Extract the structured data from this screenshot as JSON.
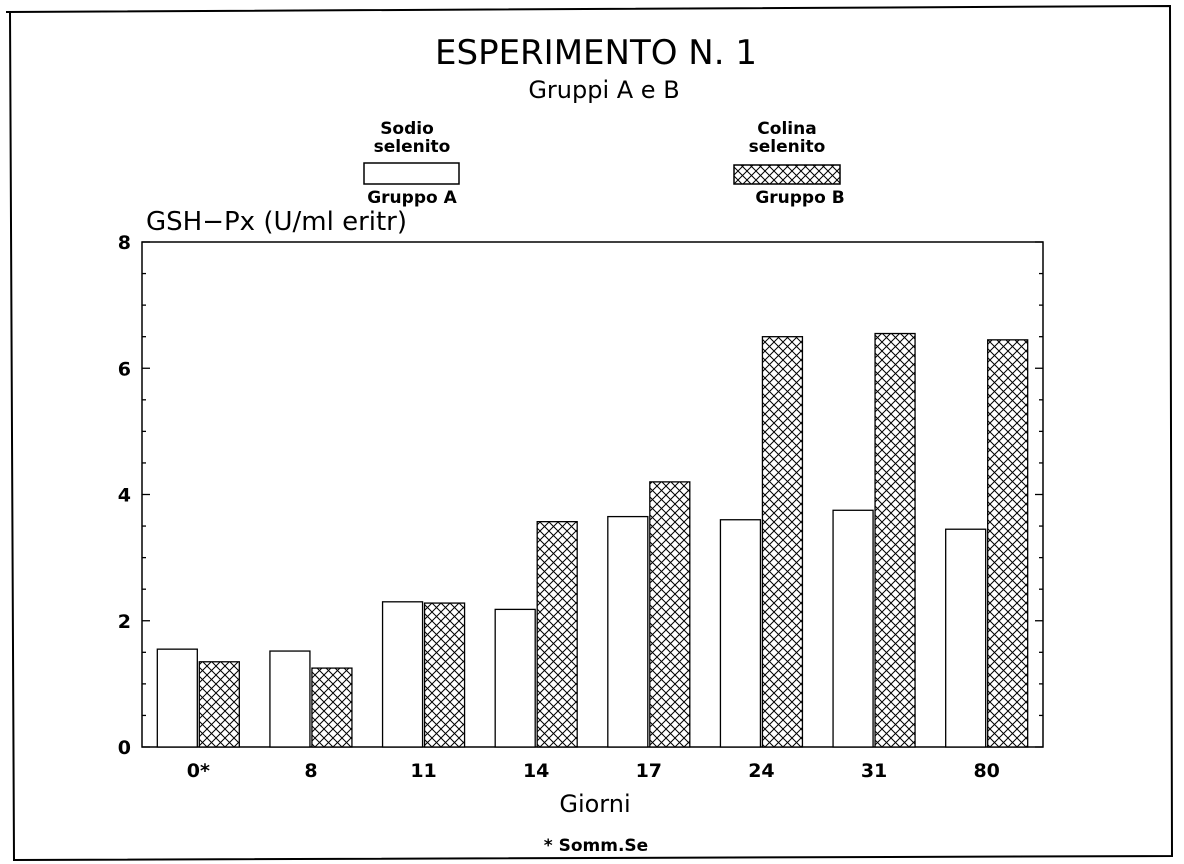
{
  "chart_data": {
    "type": "bar",
    "title": "ESPERIMENTO N. 1",
    "subtitle": "Gruppi A e B",
    "ylabel": "GSH−Px (U/ml eritr)",
    "xlabel": "Giorni",
    "footnote": "* Somm.Se",
    "categories": [
      "0*",
      "8",
      "11",
      "14",
      "17",
      "24",
      "31",
      "80"
    ],
    "ylim": [
      0,
      8
    ],
    "yticks": [
      "0",
      "2",
      "4",
      "6",
      "8"
    ],
    "legend_position": "top",
    "grid": false,
    "series": [
      {
        "name": "Gruppo A",
        "legend_title": [
          "Sodio",
          "selenito"
        ],
        "fill": "white",
        "values": [
          1.55,
          1.52,
          2.3,
          2.18,
          3.65,
          3.6,
          3.75,
          3.45
        ]
      },
      {
        "name": "Gruppo B",
        "legend_title": [
          "Colina",
          "selenito"
        ],
        "fill": "crosshatch",
        "values": [
          1.35,
          1.25,
          2.28,
          3.57,
          4.2,
          6.5,
          6.55,
          6.45
        ]
      }
    ]
  }
}
